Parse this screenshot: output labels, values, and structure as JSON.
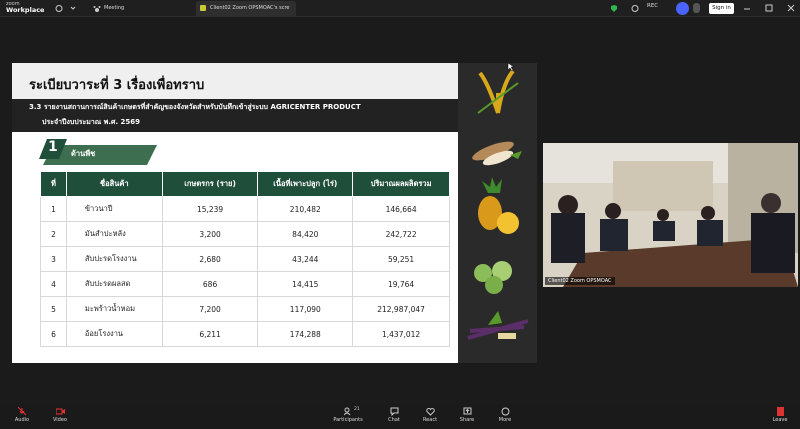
{
  "top_bar": {
    "app_name": "zoom",
    "app_product": "Workplace",
    "tabs": [
      "Meeting",
      "Client02 Zoom OPSMOAC's scre"
    ],
    "rec": "REC",
    "sign_in": "Sign in"
  },
  "slide": {
    "title": "ระเบียบวาระที่ 3 เรื่องเพื่อทราบ",
    "subtitle_line1": "3.3 รายงานสถานการณ์สินค้าเกษตรที่สำคัญของจังหวัดสำหรับบันทึกเข้าสู่ระบบ AGRICENTER PRODUCT",
    "subtitle_line2": "ประจำปีงบประมาณ พ.ศ. 2569",
    "section_number": "1",
    "section_label": "ด้านพืช",
    "table": {
      "headers": [
        "ที่",
        "ชื่อสินค้า",
        "เกษตรกร (ราย)",
        "เนื้อที่เพาะปลูก (ไร่)",
        "ปริมาณผลผลิตรวม"
      ],
      "rows": [
        [
          "1",
          "ข้าวนาปี",
          "15,239",
          "210,482",
          "146,664"
        ],
        [
          "2",
          "มันสำปะหลัง",
          "3,200",
          "84,420",
          "242,722"
        ],
        [
          "3",
          "สับปะรดโรงงาน",
          "2,680",
          "43,244",
          "59,251"
        ],
        [
          "4",
          "สับปะรดผลสด",
          "686",
          "14,415",
          "19,764"
        ],
        [
          "5",
          "มะพร้าวน้ำหอม",
          "7,200",
          "117,090",
          "212,987,047"
        ],
        [
          "6",
          "อ้อยโรงงาน",
          "6,211",
          "174,288",
          "1,437,012"
        ]
      ]
    }
  },
  "video": {
    "label": "Client02 Zoom OPSMOAC"
  },
  "toolbar": {
    "participants_count": "21",
    "items": [
      "Audio",
      "Video",
      "Participants",
      "Chat",
      "React",
      "Share",
      "More",
      "Leave"
    ]
  }
}
